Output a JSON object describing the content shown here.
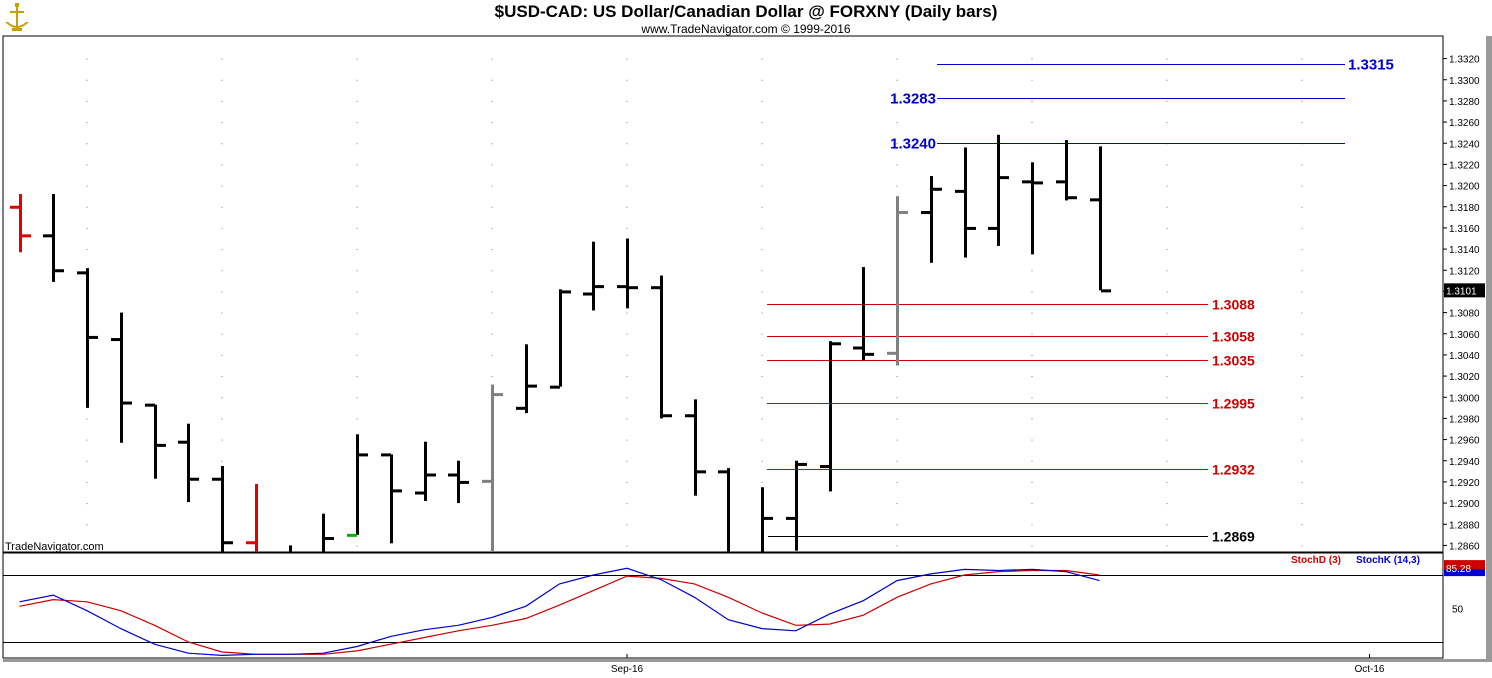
{
  "title": "$USD-CAD:  US Dollar/Canadian Dollar @ FORXNY  (Daily bars)",
  "subtitle": "www.TradeNavigator.com © 1999-2016",
  "watermark": "TradeNavigator.com",
  "colors": {
    "up_bar": "#000000",
    "red_bar": "#e00000",
    "gray_bar": "#808080",
    "green_tick": "#00b000",
    "resistance": "#0000cc",
    "support": "#cc0000",
    "stoch_d": "#cc0000",
    "stoch_k": "#0000cc"
  },
  "chart_data": {
    "type": "ohlc",
    "title": "$USD-CAD:  US Dollar/Canadian Dollar @ FORXNY  (Daily bars)",
    "ylim": [
      1.285,
      1.333
    ],
    "y_ticks": [
      "1.3320",
      "1.3300",
      "1.3280",
      "1.3260",
      "1.3240",
      "1.3220",
      "1.3200",
      "1.3180",
      "1.3160",
      "1.3140",
      "1.3120",
      "1.3100",
      "1.3080",
      "1.3060",
      "1.3040",
      "1.3020",
      "1.3000",
      "1.2980",
      "1.2960",
      "1.2940",
      "1.2920",
      "1.2900",
      "1.2880",
      "1.2860"
    ],
    "last_price": "1.3101",
    "x_labels": [
      {
        "label": "Sep-16",
        "bar": 18
      },
      {
        "label": "Oct-16",
        "bar": 40
      }
    ],
    "bars": [
      {
        "i": 0,
        "o": 1.318,
        "h": 1.3192,
        "l": 1.3137,
        "c": 1.3153,
        "color": "red"
      },
      {
        "i": 1,
        "o": 1.3153,
        "h": 1.3192,
        "l": 1.3109,
        "c": 1.312,
        "color": "black"
      },
      {
        "i": 2,
        "o": 1.3118,
        "h": 1.3122,
        "l": 1.299,
        "c": 1.3057,
        "color": "black"
      },
      {
        "i": 3,
        "o": 1.3055,
        "h": 1.308,
        "l": 1.2957,
        "c": 1.2995,
        "color": "black"
      },
      {
        "i": 4,
        "o": 1.2993,
        "h": 1.2993,
        "l": 1.2923,
        "c": 1.2955,
        "color": "black"
      },
      {
        "i": 5,
        "o": 1.2958,
        "h": 1.2975,
        "l": 1.2901,
        "c": 1.2923,
        "color": "black"
      },
      {
        "i": 6,
        "o": 1.2923,
        "h": 1.2935,
        "l": 1.285,
        "c": 1.2863,
        "color": "black"
      },
      {
        "i": 7,
        "o": 1.2863,
        "h": 1.2918,
        "l": 1.285,
        "c": 1.285,
        "color": "red"
      },
      {
        "i": 8,
        "o": 1.285,
        "h": 1.286,
        "l": 1.285,
        "c": 1.285,
        "color": "black"
      },
      {
        "i": 9,
        "o": 1.285,
        "h": 1.289,
        "l": 1.285,
        "c": 1.2867,
        "color": "black"
      },
      {
        "i": 10,
        "o": 1.287,
        "h": 1.2965,
        "l": 1.287,
        "c": 1.2946,
        "color": "black",
        "open_color": "green"
      },
      {
        "i": 11,
        "o": 1.2946,
        "h": 1.2946,
        "l": 1.2862,
        "c": 1.2912,
        "color": "black"
      },
      {
        "i": 12,
        "o": 1.291,
        "h": 1.2958,
        "l": 1.2902,
        "c": 1.2927,
        "color": "black"
      },
      {
        "i": 13,
        "o": 1.2927,
        "h": 1.294,
        "l": 1.29,
        "c": 1.292,
        "color": "black"
      },
      {
        "i": 14,
        "o": 1.2921,
        "h": 1.3012,
        "l": 1.285,
        "c": 1.3003,
        "color": "gray"
      },
      {
        "i": 15,
        "o": 1.299,
        "h": 1.305,
        "l": 1.2985,
        "c": 1.3011,
        "color": "black"
      },
      {
        "i": 16,
        "o": 1.301,
        "h": 1.3102,
        "l": 1.301,
        "c": 1.31,
        "color": "black"
      },
      {
        "i": 17,
        "o": 1.3098,
        "h": 1.3147,
        "l": 1.3082,
        "c": 1.3105,
        "color": "black"
      },
      {
        "i": 18,
        "o": 1.3105,
        "h": 1.315,
        "l": 1.3084,
        "c": 1.3104,
        "color": "black"
      },
      {
        "i": 19,
        "o": 1.3104,
        "h": 1.3115,
        "l": 1.298,
        "c": 1.2983,
        "color": "black"
      },
      {
        "i": 20,
        "o": 1.2983,
        "h": 1.2998,
        "l": 1.2907,
        "c": 1.293,
        "color": "black"
      },
      {
        "i": 21,
        "o": 1.293,
        "h": 1.2933,
        "l": 1.285,
        "c": 1.2852,
        "color": "black"
      },
      {
        "i": 22,
        "o": 1.2852,
        "h": 1.2915,
        "l": 1.285,
        "c": 1.2886,
        "color": "black"
      },
      {
        "i": 23,
        "o": 1.2886,
        "h": 1.294,
        "l": 1.2855,
        "c": 1.2937,
        "color": "black"
      },
      {
        "i": 24,
        "o": 1.2935,
        "h": 1.3053,
        "l": 1.2911,
        "c": 1.3051,
        "color": "black"
      },
      {
        "i": 25,
        "o": 1.3047,
        "h": 1.3123,
        "l": 1.3035,
        "c": 1.3041,
        "color": "black"
      },
      {
        "i": 26,
        "o": 1.3042,
        "h": 1.319,
        "l": 1.303,
        "c": 1.3175,
        "color": "gray"
      },
      {
        "i": 27,
        "o": 1.3175,
        "h": 1.3209,
        "l": 1.3127,
        "c": 1.3197,
        "color": "black"
      },
      {
        "i": 28,
        "o": 1.3195,
        "h": 1.3236,
        "l": 1.3132,
        "c": 1.316,
        "color": "black"
      },
      {
        "i": 29,
        "o": 1.316,
        "h": 1.3248,
        "l": 1.3143,
        "c": 1.3208,
        "color": "black"
      },
      {
        "i": 30,
        "o": 1.3204,
        "h": 1.3222,
        "l": 1.3135,
        "c": 1.3203,
        "color": "black"
      },
      {
        "i": 31,
        "o": 1.3204,
        "h": 1.3243,
        "l": 1.3186,
        "c": 1.3189,
        "color": "black"
      },
      {
        "i": 32,
        "o": 1.3187,
        "h": 1.3237,
        "l": 1.3101,
        "c": 1.3101,
        "color": "black"
      }
    ],
    "resistance_levels": [
      {
        "value": 1.3315,
        "label": "1.3315"
      },
      {
        "value": 1.3283,
        "label": "1.3283"
      },
      {
        "value": 1.324,
        "label": "1.3240"
      }
    ],
    "support_levels": [
      {
        "value": 1.3088,
        "label": "1.3088",
        "color": "red"
      },
      {
        "value": 1.3058,
        "label": "1.3058",
        "color": "red"
      },
      {
        "value": 1.3035,
        "label": "1.3035",
        "color": "red"
      },
      {
        "value": 1.2995,
        "label": "1.2995",
        "color": "red"
      },
      {
        "value": 1.2932,
        "label": "1.2932",
        "color": "red"
      },
      {
        "value": 1.2869,
        "label": "1.2869",
        "color": "black"
      }
    ],
    "stochastic": {
      "ylim": [
        0,
        100
      ],
      "levels": [
        80,
        20
      ],
      "tick_label": "50",
      "last_value": "85.28",
      "legend_d": "StochD (3)",
      "legend_k": "StochK (14,3)",
      "k": [
        56,
        62,
        48,
        32,
        18,
        10,
        8,
        9,
        9,
        10,
        16,
        25,
        31,
        35,
        42,
        52,
        72,
        80,
        86,
        76,
        60,
        40,
        32,
        30,
        45,
        57,
        75,
        81,
        85,
        84,
        85,
        83,
        75
      ],
      "d": [
        52,
        58,
        56,
        48,
        35,
        20,
        11,
        9,
        9,
        9,
        12,
        18,
        24,
        30,
        35,
        41,
        53,
        66,
        79,
        77,
        72,
        60,
        46,
        35,
        36,
        44,
        60,
        72,
        80,
        83,
        84,
        84,
        80
      ]
    }
  }
}
